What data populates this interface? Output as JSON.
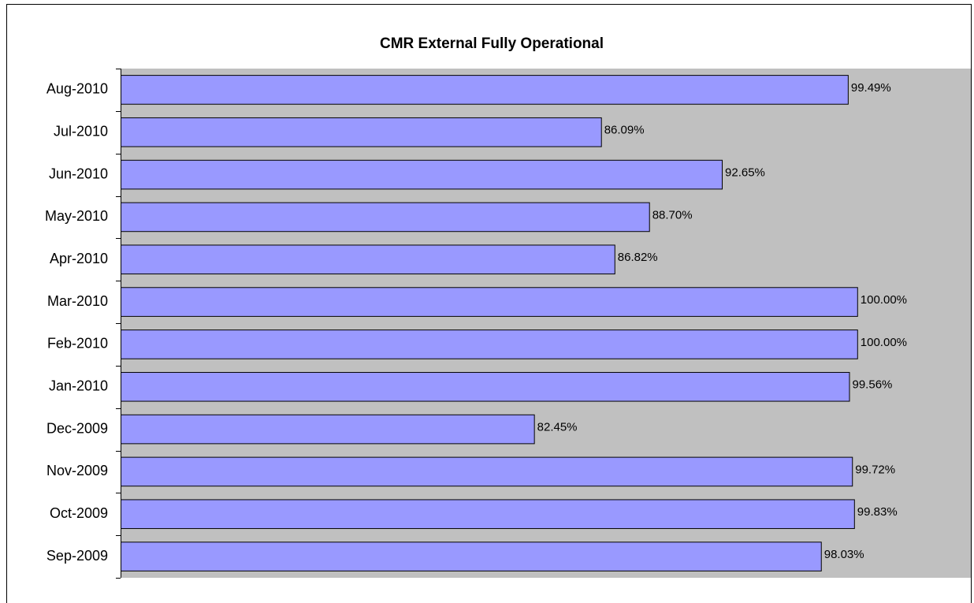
{
  "chart_data": {
    "type": "bar",
    "orientation": "horizontal",
    "title": "CMR  External Fully Operational",
    "categories": [
      "Aug-2010",
      "Jul-2010",
      "Jun-2010",
      "May-2010",
      "Apr-2010",
      "Mar-2010",
      "Feb-2010",
      "Jan-2010",
      "Dec-2009",
      "Nov-2009",
      "Oct-2009",
      "Sep-2009"
    ],
    "values": [
      99.49,
      86.09,
      92.65,
      88.7,
      86.82,
      100.0,
      100.0,
      99.56,
      82.45,
      99.72,
      99.83,
      98.03
    ],
    "value_labels": [
      "99.49%",
      "86.09%",
      "92.65%",
      "88.70%",
      "86.82%",
      "100.00%",
      "100.00%",
      "99.56%",
      "82.45%",
      "99.72%",
      "99.83%",
      "98.03%"
    ],
    "color": "#9999ff",
    "plot_background": "#c0c0c0",
    "xlim": [
      60,
      106
    ]
  }
}
